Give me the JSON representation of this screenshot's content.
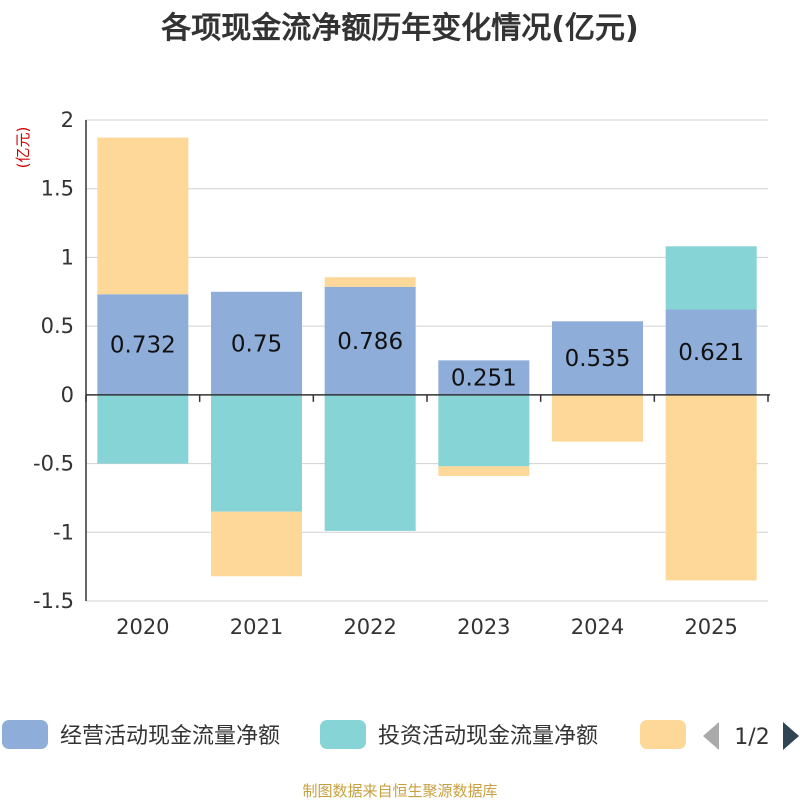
{
  "chart_data": {
    "type": "bar",
    "stacked": true,
    "title": "各项现金流净额历年变化情况(亿元)",
    "ylabel": "(亿元)",
    "categories": [
      "2020",
      "2021",
      "2022",
      "2023",
      "2024",
      "2025"
    ],
    "ylim": [
      -1.5,
      2
    ],
    "yticks": [
      2,
      1.5,
      1,
      0.5,
      0,
      -0.5,
      -1,
      -1.5
    ],
    "ytick_labels": [
      "2",
      "1.5",
      "1",
      "0.5",
      "0",
      "-0.5",
      "-1",
      "-1.5"
    ],
    "grid": true,
    "series": [
      {
        "name": "经营活动现金流量净额",
        "color": "#8eadd9",
        "values": [
          0.732,
          0.75,
          0.786,
          0.251,
          0.535,
          0.621
        ],
        "labels": [
          "0.732",
          "0.75",
          "0.786",
          "0.251",
          "0.535",
          "0.621"
        ]
      },
      {
        "name": "投资活动现金流量净额",
        "color": "#87d4d6",
        "values": [
          -0.5,
          -0.85,
          -0.99,
          -0.52,
          0.0,
          0.46
        ]
      },
      {
        "name": "",
        "color": "#fdd899",
        "values": [
          1.14,
          -0.47,
          0.07,
          -0.07,
          -0.34,
          -1.35
        ]
      }
    ],
    "legend": {
      "position": "bottom",
      "pager": "1/2"
    },
    "source": "制图数据来自恒生聚源数据库"
  }
}
